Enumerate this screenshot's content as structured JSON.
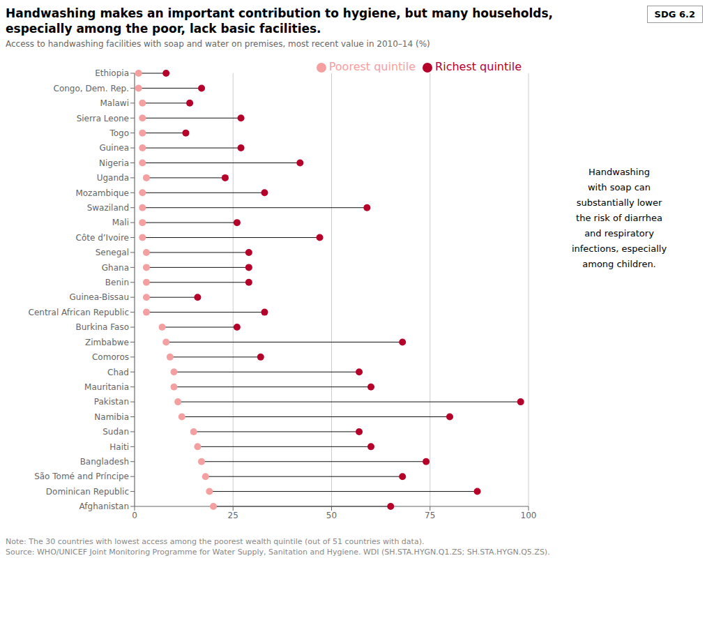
{
  "chart_data": {
    "type": "dumbbell",
    "orientation": "horizontal",
    "title": "Handwashing makes an important contribution to hygiene, but many households,\nespecially among the poor, lack basic facilities.",
    "subtitle": "Access to handwashing facilities with soap and water on premises, most recent value in 2010–14 (%)",
    "annotations": [
      "SDG 6.2",
      "Handwashing\nwith soap can\nsubstantially lower\nthe risk of diarrhea\nand respiratory\ninfections, especially\namong children.",
      "Note: The 30 countries with lowest access among the poorest wealth quintile (out of 51 countries with data).",
      "Source: WHO/UNICEF Joint Monitoring Programme for Water Supply, Sanitation and Hygiene. WDI (SH.STA.HYGN.Q1.ZS; SH.STA.HYGN.Q5.ZS)."
    ],
    "categories": [
      "Ethiopia",
      "Congo, Dem. Rep.",
      "Malawi",
      "Sierra Leone",
      "Togo",
      "Guinea",
      "Nigeria",
      "Uganda",
      "Mozambique",
      "Swaziland",
      "Mali",
      "Côte d’Ivoire",
      "Senegal",
      "Ghana",
      "Benin",
      "Guinea-Bissau",
      "Central African Republic",
      "Burkina Faso",
      "Zimbabwe",
      "Comoros",
      "Chad",
      "Mauritania",
      "Pakistan",
      "Namibia",
      "Sudan",
      "Haiti",
      "Bangladesh",
      "São Tomé and Príncipe",
      "Dominican Republic",
      "Afghanistan"
    ],
    "series": [
      {
        "name": "Poorest quintile",
        "color": "#f4a0a0",
        "marker": "circle",
        "values": [
          1,
          1,
          2,
          2,
          2,
          2,
          2,
          3,
          2,
          2,
          2,
          2,
          3,
          3,
          3,
          3,
          3,
          7,
          8,
          9,
          10,
          10,
          11,
          12,
          15,
          16,
          17,
          18,
          19,
          20
        ]
      },
      {
        "name": "Richest quintile",
        "color": "#b5002a",
        "marker": "circle",
        "values": [
          8,
          17,
          14,
          27,
          13,
          27,
          42,
          23,
          33,
          59,
          26,
          47,
          29,
          29,
          29,
          16,
          33,
          26,
          68,
          32,
          57,
          60,
          98,
          80,
          57,
          60,
          74,
          68,
          87,
          65
        ]
      }
    ],
    "color": "#111111",
    "xlim": [
      0,
      100
    ],
    "xticks": [
      0,
      25,
      50,
      75,
      100
    ],
    "grid": true,
    "legend": "top-right"
  }
}
